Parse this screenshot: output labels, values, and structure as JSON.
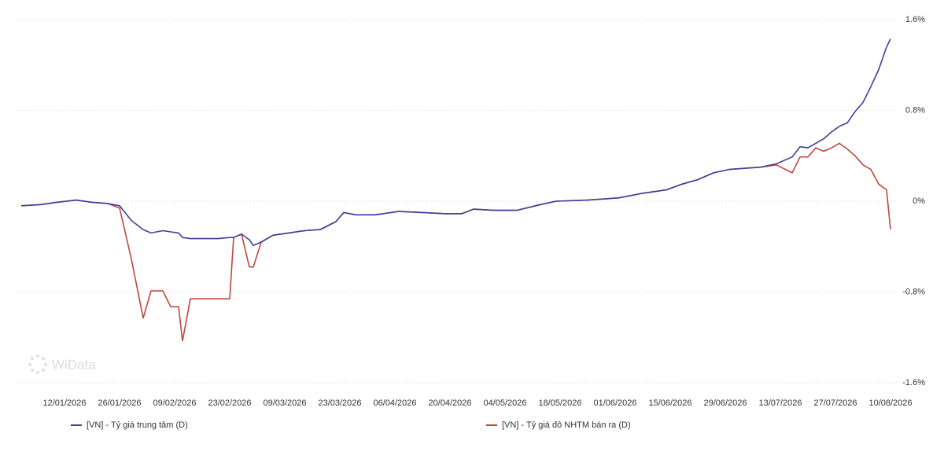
{
  "chart_data": {
    "type": "line",
    "watermark": "WiData",
    "x": [
      "01/01/2026",
      "06/01/2026",
      "10/01/2026",
      "15/01/2026",
      "19/01/2026",
      "23/01/2026",
      "26/01/2026",
      "29/01/2026",
      "01/02/2026",
      "03/02/2026",
      "06/02/2026",
      "08/02/2026",
      "10/02/2026",
      "11/02/2026",
      "13/02/2026",
      "20/02/2026",
      "23/02/2026",
      "24/02/2026",
      "26/02/2026",
      "28/02/2026",
      "01/03/2026",
      "03/03/2026",
      "06/03/2026",
      "10/03/2026",
      "14/03/2026",
      "18/03/2026",
      "22/03/2026",
      "24/03/2026",
      "27/03/2026",
      "01/04/2026",
      "07/04/2026",
      "13/04/2026",
      "19/04/2026",
      "23/04/2026",
      "26/04/2026",
      "01/05/2026",
      "07/05/2026",
      "13/05/2026",
      "17/05/2026",
      "25/05/2026",
      "02/06/2026",
      "08/06/2026",
      "14/06/2026",
      "18/06/2026",
      "22/06/2026",
      "26/06/2026",
      "30/06/2026",
      "04/07/2026",
      "08/07/2026",
      "12/07/2026",
      "16/07/2026",
      "18/07/2026",
      "20/07/2026",
      "22/07/2026",
      "24/07/2026",
      "26/07/2026",
      "28/07/2026",
      "30/07/2026",
      "01/08/2026",
      "03/08/2026",
      "05/08/2026",
      "07/08/2026",
      "09/08/2026",
      "10/08/2026"
    ],
    "series": [
      {
        "name": "[VN] - Tỷ giá trung tâm (D)",
        "color": "#3d3f9a",
        "values": [
          -0.04,
          -0.03,
          -0.01,
          0.01,
          -0.01,
          -0.02,
          -0.04,
          -0.17,
          -0.25,
          -0.28,
          -0.26,
          -0.27,
          -0.28,
          -0.32,
          -0.33,
          -0.33,
          -0.32,
          -0.32,
          -0.29,
          -0.34,
          -0.39,
          -0.36,
          -0.3,
          -0.28,
          -0.26,
          -0.25,
          -0.18,
          -0.1,
          -0.12,
          -0.12,
          -0.09,
          -0.1,
          -0.11,
          -0.11,
          -0.07,
          -0.08,
          -0.08,
          -0.03,
          0,
          0.01,
          0.03,
          0.07,
          0.1,
          0.15,
          0.19,
          0.25,
          0.28,
          0.29,
          0.3,
          0.33,
          0.39,
          0.48,
          0.47,
          0.51,
          0.55,
          0.61,
          0.66,
          0.69,
          0.79,
          0.87,
          1.01,
          1.16,
          1.36,
          1.43
        ]
      },
      {
        "name": "[VN] - Tỷ giá đô NHTM bán ra (D)",
        "color": "#c2463e",
        "values": [
          -0.04,
          -0.03,
          -0.01,
          0.01,
          -0.01,
          -0.02,
          -0.06,
          -0.51,
          -1.03,
          -0.79,
          -0.79,
          -0.93,
          -0.93,
          -1.23,
          -0.86,
          -0.86,
          -0.86,
          -0.32,
          -0.29,
          -0.58,
          -0.58,
          -0.36,
          -0.3,
          -0.28,
          -0.26,
          -0.25,
          -0.18,
          -0.1,
          -0.12,
          -0.12,
          -0.09,
          -0.1,
          -0.11,
          -0.11,
          -0.07,
          -0.08,
          -0.08,
          -0.03,
          0,
          0.01,
          0.03,
          0.07,
          0.1,
          0.15,
          0.19,
          0.25,
          0.28,
          0.29,
          0.3,
          0.32,
          0.25,
          0.39,
          0.39,
          0.47,
          0.44,
          0.47,
          0.51,
          0.46,
          0.4,
          0.32,
          0.28,
          0.15,
          0.1,
          -0.25
        ]
      }
    ],
    "xlim": [
      "01/01/2026",
      "10/08/2026"
    ],
    "xticks": [
      "12/01/2026",
      "26/01/2026",
      "09/02/2026",
      "23/02/2026",
      "09/03/2026",
      "23/03/2026",
      "06/04/2026",
      "20/04/2026",
      "04/05/2026",
      "18/05/2026",
      "01/06/2026",
      "15/06/2026",
      "29/06/2026",
      "13/07/2026",
      "27/07/2026",
      "10/08/2026"
    ],
    "ylim": [
      -1.6,
      1.6
    ],
    "yticks": [
      {
        "value": -1.6,
        "label": "-1.6%"
      },
      {
        "value": -0.8,
        "label": "-0.8%"
      },
      {
        "value": 0,
        "label": "0%"
      },
      {
        "value": 0.8,
        "label": "0.8%"
      },
      {
        "value": 1.6,
        "label": "1.6%"
      }
    ],
    "grid": true,
    "legend": "bottom"
  }
}
